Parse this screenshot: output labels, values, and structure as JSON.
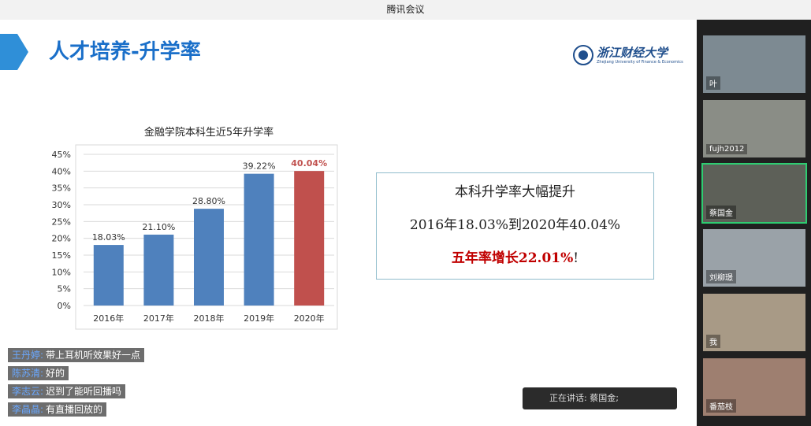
{
  "window": {
    "title": "腾讯会议"
  },
  "slide": {
    "title": "人才培养-升学率",
    "logo_name": "浙江财经大学",
    "logo_subtitle": "Zhejiang University of Finance & Economics",
    "box": {
      "line1": "本科升学率大幅提升",
      "line2": "2016年18.03%到2020年40.04%",
      "emphasis": "五年率增长22.01%",
      "emphasis_mark": "!"
    }
  },
  "chart_data": {
    "type": "bar",
    "title": "金融学院本科生近5年升学率",
    "categories": [
      "2016年",
      "2017年",
      "2018年",
      "2019年",
      "2020年"
    ],
    "values": [
      18.03,
      21.1,
      28.8,
      39.22,
      40.04
    ],
    "value_labels": [
      "18.03%",
      "21.10%",
      "28.80%",
      "39.22%",
      "40.04%"
    ],
    "colors": [
      "#4f81bd",
      "#4f81bd",
      "#4f81bd",
      "#4f81bd",
      "#c0504d"
    ],
    "ylim": [
      0,
      45
    ],
    "yticks": [
      {
        "value": 0,
        "label": "0%"
      },
      {
        "value": 5,
        "label": "5%"
      },
      {
        "value": 10,
        "label": "10%"
      },
      {
        "value": 15,
        "label": "15%"
      },
      {
        "value": 20,
        "label": "20%"
      },
      {
        "value": 25,
        "label": "25%"
      },
      {
        "value": 30,
        "label": "30%"
      },
      {
        "value": 35,
        "label": "35%"
      },
      {
        "value": 40,
        "label": "40%"
      },
      {
        "value": 45,
        "label": "45%"
      }
    ],
    "grid": true
  },
  "chat": [
    {
      "name": "王丹婷:",
      "text": "带上耳机听效果好一点"
    },
    {
      "name": "陈苏清:",
      "text": "好的"
    },
    {
      "name": "李志云:",
      "text": "迟到了能听回播吗"
    },
    {
      "name": "李晶晶:",
      "text": "有直播回放的"
    }
  ],
  "speaking": {
    "label": "正在讲话:",
    "name": "蔡国金;"
  },
  "participants": [
    "叶",
    "fujh2012",
    "蔡国金",
    "刘柳璟",
    "我",
    "番茄枝"
  ]
}
